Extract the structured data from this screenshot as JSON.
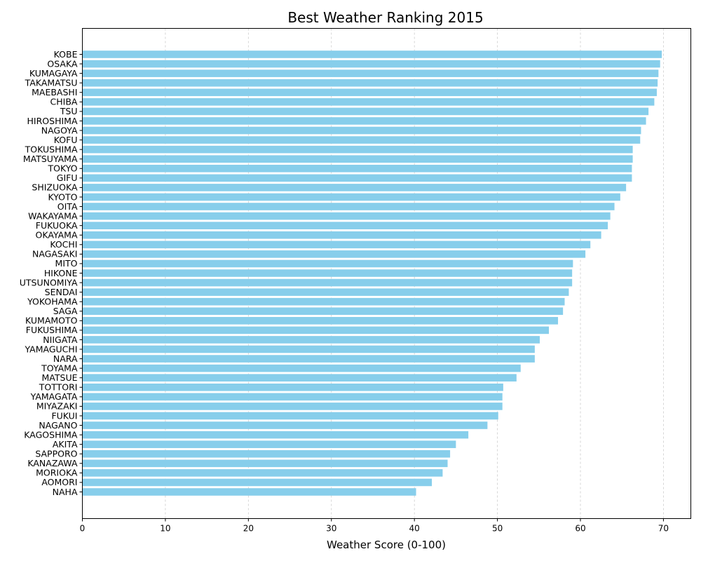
{
  "chart_data": {
    "type": "bar",
    "orientation": "horizontal",
    "title": "Best Weather Ranking 2015",
    "xlabel": "Weather Score (0-100)",
    "ylabel": "",
    "xlim": [
      0,
      73.3
    ],
    "xticks": [
      0,
      10,
      20,
      30,
      40,
      50,
      60,
      70
    ],
    "grid": "x-dashed",
    "bar_color": "#87CEEB",
    "categories": [
      "KOBE",
      "OSAKA",
      "KUMAGAYA",
      "TAKAMATSU",
      "MAEBASHI",
      "CHIBA",
      "TSU",
      "HIROSHIMA",
      "NAGOYA",
      "KOFU",
      "TOKUSHIMA",
      "MATSUYAMA",
      "TOKYO",
      "GIFU",
      "SHIZUOKA",
      "KYOTO",
      "OITA",
      "WAKAYAMA",
      "FUKUOKA",
      "OKAYAMA",
      "KOCHI",
      "NAGASAKI",
      "MITO",
      "HIKONE",
      "UTSUNOMIYA",
      "SENDAI",
      "YOKOHAMA",
      "SAGA",
      "KUMAMOTO",
      "FUKUSHIMA",
      "NIIGATA",
      "YAMAGUCHI",
      "NARA",
      "TOYAMA",
      "MATSUE",
      "TOTTORI",
      "YAMAGATA",
      "MIYAZAKI",
      "FUKUI",
      "NAGANO",
      "KAGOSHIMA",
      "AKITA",
      "SAPPORO",
      "KANAZAWA",
      "MORIOKA",
      "AOMORI",
      "NAHA"
    ],
    "values": [
      69.8,
      69.6,
      69.4,
      69.3,
      69.2,
      68.9,
      68.2,
      67.9,
      67.3,
      67.2,
      66.3,
      66.3,
      66.2,
      66.2,
      65.5,
      64.8,
      64.1,
      63.6,
      63.3,
      62.5,
      61.2,
      60.6,
      59.1,
      59.0,
      59.0,
      58.6,
      58.1,
      57.9,
      57.3,
      56.2,
      55.1,
      54.5,
      54.5,
      52.8,
      52.3,
      50.7,
      50.6,
      50.6,
      50.1,
      48.8,
      46.5,
      45.0,
      44.3,
      44.0,
      43.4,
      42.1,
      40.2
    ]
  }
}
